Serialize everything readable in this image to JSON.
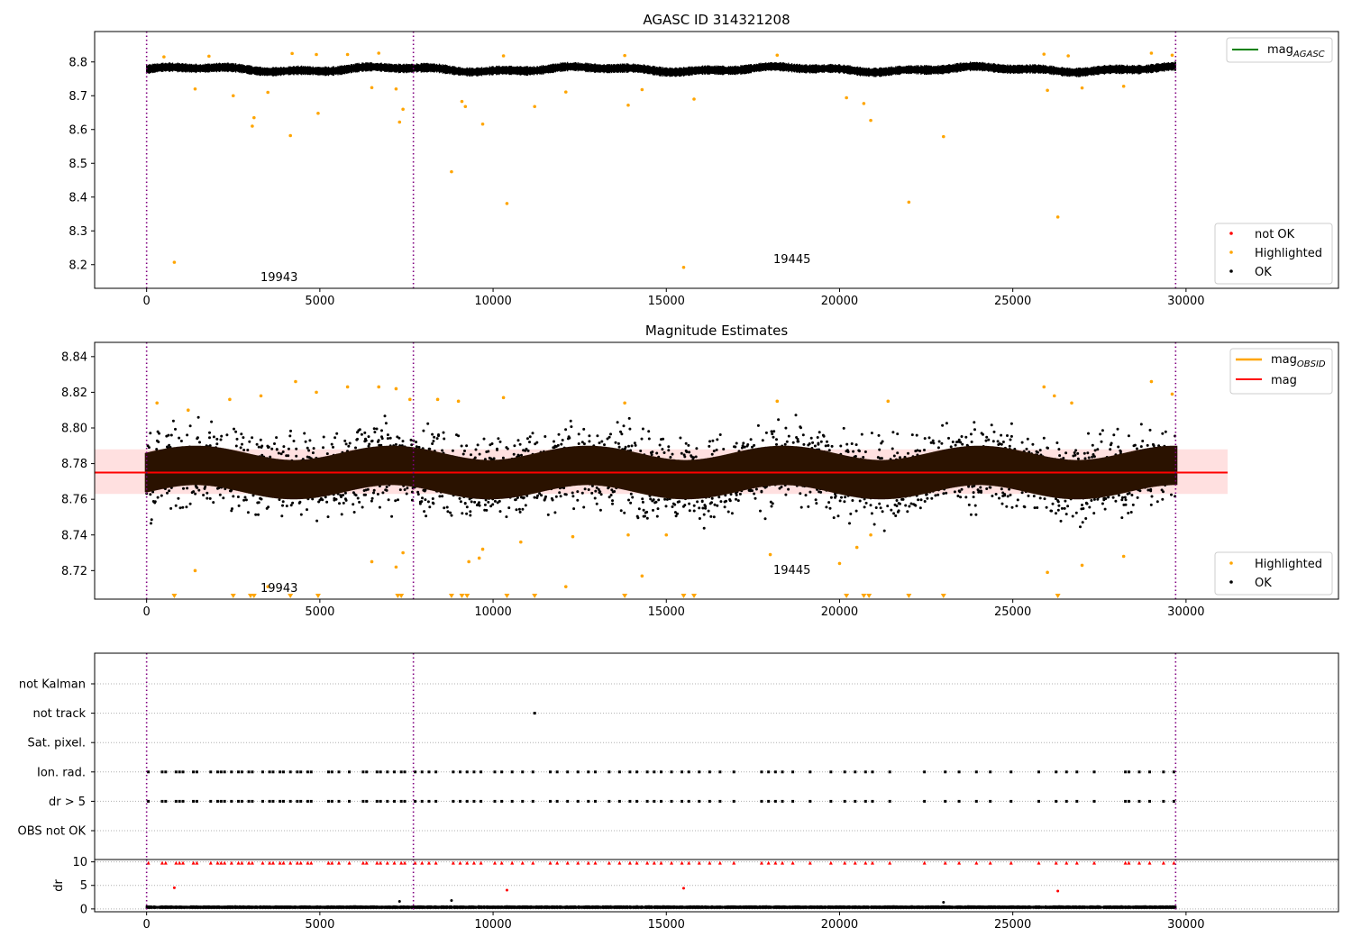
{
  "figure": {
    "background": "#ffffff"
  },
  "chart_data": [
    {
      "type": "scatter",
      "title": "AGASC ID 314321208",
      "xlabel": "",
      "ylabel": "",
      "xlim": [
        -1500,
        34400
      ],
      "ylim": [
        8.13,
        8.89
      ],
      "xticks": [
        0,
        5000,
        10000,
        15000,
        20000,
        25000,
        30000
      ],
      "yticks": [
        8.2,
        8.3,
        8.4,
        8.5,
        8.6,
        8.7,
        8.8
      ],
      "ytick_decimals": 1,
      "grid": false,
      "obsid_boundaries": [
        0,
        7700,
        29700
      ],
      "obsid_labels": [
        {
          "text": "19943",
          "x": 3850,
          "y": 8.157
        },
        {
          "text": "19445",
          "x": 18700,
          "y": 8.21
        }
      ],
      "ok_band": {
        "center": 8.778,
        "spread": 0.013,
        "x_start": 0,
        "x_end": 29700,
        "wave": 0.006
      },
      "series": [
        {
          "name": "not OK",
          "color": "#ff0000",
          "points": []
        },
        {
          "name": "Highlighted",
          "color": "#ffa500",
          "points": [
            [
              800,
              8.207
            ],
            [
              1400,
              8.72
            ],
            [
              2500,
              8.7
            ],
            [
              3050,
              8.61
            ],
            [
              3100,
              8.635
            ],
            [
              3500,
              8.71
            ],
            [
              4150,
              8.582
            ],
            [
              4950,
              8.648
            ],
            [
              6500,
              8.724
            ],
            [
              7200,
              8.72
            ],
            [
              7300,
              8.622
            ],
            [
              7400,
              8.66
            ],
            [
              8800,
              8.475
            ],
            [
              9200,
              8.668
            ],
            [
              9100,
              8.683
            ],
            [
              9700,
              8.616
            ],
            [
              10400,
              8.381
            ],
            [
              11200,
              8.668
            ],
            [
              12100,
              8.711
            ],
            [
              13900,
              8.672
            ],
            [
              14300,
              8.718
            ],
            [
              15500,
              8.192
            ],
            [
              15800,
              8.69
            ],
            [
              20200,
              8.694
            ],
            [
              20700,
              8.677
            ],
            [
              20900,
              8.627
            ],
            [
              22000,
              8.385
            ],
            [
              23000,
              8.579
            ],
            [
              26000,
              8.716
            ],
            [
              26300,
              8.341
            ],
            [
              27000,
              8.723
            ],
            [
              28200,
              8.728
            ],
            [
              500,
              8.815
            ],
            [
              1800,
              8.817
            ],
            [
              4200,
              8.825
            ],
            [
              4900,
              8.822
            ],
            [
              5800,
              8.822
            ],
            [
              6700,
              8.826
            ],
            [
              10300,
              8.818
            ],
            [
              13800,
              8.819
            ],
            [
              18200,
              8.82
            ],
            [
              25900,
              8.823
            ],
            [
              26600,
              8.818
            ],
            [
              29000,
              8.826
            ],
            [
              29600,
              8.82
            ]
          ]
        },
        {
          "name": "OK",
          "color": "#000000",
          "points": []
        }
      ],
      "legends": [
        {
          "position": "top-right",
          "entries": [
            {
              "name": "mag_{AGASC}",
              "color": "#008000",
              "kind": "line"
            }
          ]
        },
        {
          "position": "bottom-right",
          "entries": [
            {
              "name": "not OK",
              "color": "#ff0000",
              "kind": "point"
            },
            {
              "name": "Highlighted",
              "color": "#ffa500",
              "kind": "point"
            },
            {
              "name": "OK",
              "color": "#000000",
              "kind": "point"
            }
          ]
        }
      ]
    },
    {
      "type": "scatter",
      "title": "Magnitude Estimates",
      "xlabel": "",
      "ylabel": "",
      "xlim": [
        -1500,
        34400
      ],
      "ylim": [
        8.704,
        8.848
      ],
      "xticks": [
        0,
        5000,
        10000,
        15000,
        20000,
        25000,
        30000
      ],
      "yticks": [
        8.72,
        8.74,
        8.76,
        8.78,
        8.8,
        8.82,
        8.84
      ],
      "ytick_decimals": 2,
      "grid": false,
      "obsid_boundaries": [
        0,
        7700,
        29700
      ],
      "obsid_labels": [
        {
          "text": "19943",
          "x": 3850,
          "y": 8.707
        },
        {
          "text": "19445",
          "x": 18700,
          "y": 8.718
        }
      ],
      "mag_line": {
        "value": 8.775,
        "color": "#ff0000",
        "x_start": -1500,
        "x_end": 31200
      },
      "mag_band": {
        "low": 8.763,
        "high": 8.788,
        "color": "#ffcccc",
        "x_start": -1500,
        "x_end": 31200
      },
      "ok_band": {
        "center": 8.775,
        "spread": 0.02,
        "x_start": 0,
        "x_end": 29700,
        "wave": 0.004
      },
      "series": [
        {
          "name": "Highlighted",
          "color": "#ffa500",
          "points": [
            [
              1400,
              8.72
            ],
            [
              3500,
              8.711
            ],
            [
              6500,
              8.725
            ],
            [
              7200,
              8.722
            ],
            [
              7400,
              8.73
            ],
            [
              9300,
              8.725
            ],
            [
              9700,
              8.732
            ],
            [
              9600,
              8.727
            ],
            [
              10800,
              8.736
            ],
            [
              12100,
              8.711
            ],
            [
              12300,
              8.739
            ],
            [
              13900,
              8.74
            ],
            [
              14300,
              8.717
            ],
            [
              15000,
              8.74
            ],
            [
              18000,
              8.729
            ],
            [
              20000,
              8.724
            ],
            [
              20500,
              8.733
            ],
            [
              20900,
              8.74
            ],
            [
              26000,
              8.719
            ],
            [
              27000,
              8.723
            ],
            [
              28200,
              8.728
            ],
            [
              300,
              8.814
            ],
            [
              1200,
              8.81
            ],
            [
              2400,
              8.816
            ],
            [
              3300,
              8.818
            ],
            [
              4300,
              8.826
            ],
            [
              4900,
              8.82
            ],
            [
              5800,
              8.823
            ],
            [
              6700,
              8.823
            ],
            [
              7200,
              8.822
            ],
            [
              7600,
              8.816
            ],
            [
              8400,
              8.816
            ],
            [
              9000,
              8.815
            ],
            [
              10300,
              8.817
            ],
            [
              13800,
              8.814
            ],
            [
              18200,
              8.815
            ],
            [
              21400,
              8.815
            ],
            [
              25900,
              8.823
            ],
            [
              26200,
              8.818
            ],
            [
              26700,
              8.814
            ],
            [
              29000,
              8.826
            ],
            [
              29600,
              8.819
            ]
          ]
        },
        {
          "name": "OK",
          "color": "#000000",
          "points": []
        }
      ],
      "offscale_markers": {
        "color": "#ffa500",
        "x": [
          800,
          2500,
          3000,
          3100,
          4150,
          4950,
          7250,
          7350,
          8800,
          9100,
          9250,
          10400,
          11200,
          13800,
          15500,
          15800,
          20200,
          20700,
          20850,
          22000,
          23000,
          26300
        ]
      },
      "legends": [
        {
          "position": "top-right",
          "entries": [
            {
              "name": "mag_{OBSID}",
              "color": "#ffa500",
              "kind": "line"
            },
            {
              "name": "mag",
              "color": "#ff0000",
              "kind": "line"
            }
          ]
        },
        {
          "position": "bottom-right",
          "entries": [
            {
              "name": "Highlighted",
              "color": "#ffa500",
              "kind": "point"
            },
            {
              "name": "OK",
              "color": "#000000",
              "kind": "point"
            }
          ]
        }
      ]
    },
    {
      "type": "scatter",
      "title": "",
      "xlabel": "",
      "ylabel": "",
      "xlim": [
        -1500,
        34400
      ],
      "obsid_boundaries": [
        0,
        7700,
        29700
      ],
      "categories": [
        "not Kalman",
        "not track",
        "Sat. pixel.",
        "Ion. rad.",
        "dr > 5",
        "OBS not OK"
      ],
      "flag_points": {
        "not Kalman": [],
        "not track": [
          11200
        ],
        "Sat. pixel.": [],
        "Ion. rad.": [
          50,
          450,
          550,
          850,
          950,
          1050,
          1350,
          1450,
          1850,
          2050,
          2150,
          2250,
          2450,
          2650,
          2750,
          2950,
          3050,
          3350,
          3550,
          3650,
          3850,
          3950,
          4150,
          4350,
          4450,
          4650,
          4750,
          5250,
          5350,
          5550,
          5850,
          6250,
          6350,
          6650,
          6750,
          6950,
          7150,
          7350,
          7450,
          7750,
          7950,
          8150,
          8350,
          8850,
          9050,
          9250,
          9450,
          9650,
          10050,
          10250,
          10550,
          10850,
          11150,
          11650,
          11850,
          12150,
          12450,
          12750,
          12950,
          13350,
          13650,
          13950,
          14150,
          14450,
          14650,
          14850,
          15150,
          15450,
          15650,
          15950,
          16250,
          16550,
          16950,
          17750,
          17950,
          18150,
          18350,
          18650,
          19150,
          19750,
          20150,
          20450,
          20750,
          20950,
          21450,
          22450,
          23050,
          23450,
          23950,
          24350,
          24950,
          25750,
          26250,
          26550,
          26850,
          27350,
          28250,
          28350,
          28650,
          28950,
          29350,
          29650
        ],
        "dr > 5": [
          50,
          450,
          550,
          850,
          950,
          1050,
          1350,
          1450,
          1850,
          2050,
          2150,
          2250,
          2450,
          2650,
          2750,
          2950,
          3050,
          3350,
          3550,
          3650,
          3850,
          3950,
          4150,
          4350,
          4450,
          4650,
          4750,
          5250,
          5350,
          5550,
          5850,
          6250,
          6350,
          6650,
          6750,
          6950,
          7150,
          7350,
          7450,
          7750,
          7950,
          8150,
          8350,
          8850,
          9050,
          9250,
          9450,
          9650,
          10050,
          10250,
          10550,
          10850,
          11150,
          11650,
          11850,
          12150,
          12450,
          12750,
          12950,
          13350,
          13650,
          13950,
          14150,
          14450,
          14650,
          14850,
          15150,
          15450,
          15650,
          15950,
          16250,
          16550,
          16950,
          17750,
          17950,
          18150,
          18350,
          18650,
          19150,
          19750,
          20150,
          20450,
          20750,
          20950,
          21450,
          22450,
          23050,
          23450,
          23950,
          24350,
          24950,
          25750,
          26250,
          26550,
          26850,
          27350,
          28250,
          28350,
          28650,
          28950,
          29350,
          29650
        ],
        "OBS not OK": []
      },
      "grid": "dotted-horizontal"
    },
    {
      "type": "scatter",
      "title": "",
      "xlabel": "",
      "ylabel": "dr",
      "xlim": [
        -1500,
        34400
      ],
      "ylim": [
        -0.6,
        10.5
      ],
      "xticks": [
        0,
        5000,
        10000,
        15000,
        20000,
        25000,
        30000
      ],
      "yticks": [
        0,
        5,
        10
      ],
      "ytick_decimals": 0,
      "grid": "dotted-horizontal",
      "obsid_boundaries": [
        0,
        7700,
        29700
      ],
      "baseline_band": {
        "center": 0.35,
        "spread": 0.35,
        "x_start": 0,
        "x_end": 29700
      },
      "capped_value": 9.8,
      "capped_color": "#ff0000",
      "capped_x": [
        50,
        450,
        550,
        850,
        950,
        1050,
        1350,
        1450,
        1850,
        2050,
        2150,
        2250,
        2450,
        2650,
        2750,
        2950,
        3050,
        3350,
        3550,
        3650,
        3850,
        3950,
        4150,
        4350,
        4450,
        4650,
        4750,
        5250,
        5350,
        5550,
        5850,
        6250,
        6350,
        6650,
        6750,
        6950,
        7150,
        7350,
        7450,
        7750,
        7950,
        8150,
        8350,
        8850,
        9050,
        9250,
        9450,
        9650,
        10050,
        10250,
        10550,
        10850,
        11150,
        11650,
        11850,
        12150,
        12450,
        12750,
        12950,
        13350,
        13650,
        13950,
        14150,
        14450,
        14650,
        14850,
        15150,
        15450,
        15650,
        15950,
        16250,
        16550,
        16950,
        17750,
        17950,
        18150,
        18350,
        18650,
        19150,
        19750,
        20150,
        20450,
        20750,
        20950,
        21450,
        22450,
        23050,
        23450,
        23950,
        24350,
        24950,
        25750,
        26250,
        26550,
        26850,
        27350,
        28250,
        28350,
        28650,
        28950,
        29350,
        29650
      ],
      "outliers": [
        [
          800,
          4.5
        ],
        [
          10400,
          4.0
        ],
        [
          15500,
          4.4
        ],
        [
          26300,
          3.8
        ],
        [
          7300,
          1.6
        ],
        [
          8800,
          1.8
        ],
        [
          23000,
          1.4
        ]
      ]
    }
  ]
}
